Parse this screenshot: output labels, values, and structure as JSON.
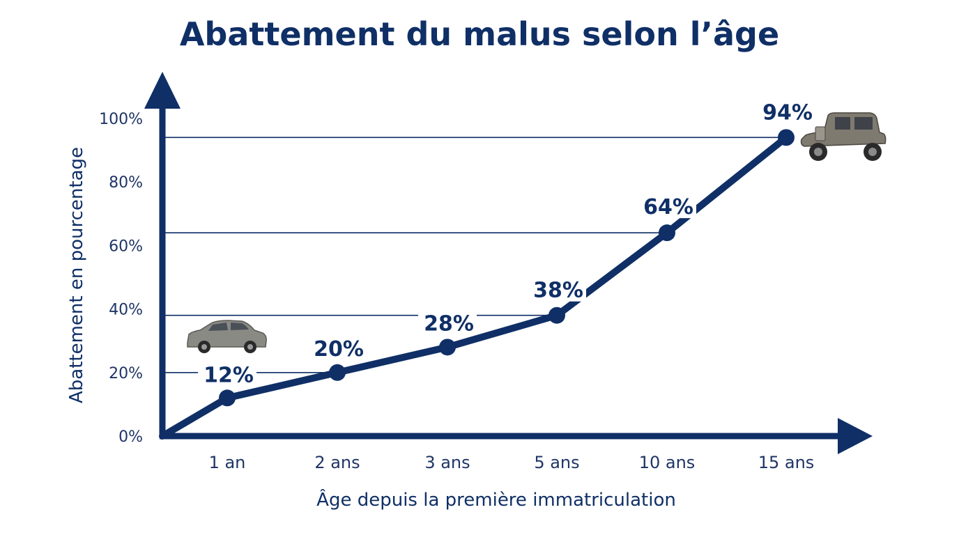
{
  "colors": {
    "primary": "#0f2f66",
    "line": "#0f2f66",
    "background": "#ffffff"
  },
  "chart_data": {
    "type": "line",
    "title": "Abattement du malus selon l’âge",
    "xlabel": "Âge depuis la première immatriculation",
    "ylabel": "Abattement en pourcentage",
    "categories": [
      "1 an",
      "2 ans",
      "3 ans",
      "5 ans",
      "10 ans",
      "15 ans"
    ],
    "values": [
      12,
      20,
      28,
      38,
      64,
      94
    ],
    "point_labels": [
      "12%",
      "20%",
      "28%",
      "38%",
      "64%",
      "94%"
    ],
    "origin_value": 0,
    "yticks": [
      {
        "value": 0,
        "label": "0%"
      },
      {
        "value": 20,
        "label": "20%"
      },
      {
        "value": 40,
        "label": "40%"
      },
      {
        "value": 60,
        "label": "60%"
      },
      {
        "value": 80,
        "label": "80%"
      },
      {
        "value": 100,
        "label": "100%"
      }
    ],
    "ylim": [
      0,
      100
    ],
    "reference_lines_at_points": true,
    "illustrations": [
      "modern-car-icon",
      "vintage-car-icon"
    ],
    "grid": false,
    "legend": "none"
  }
}
